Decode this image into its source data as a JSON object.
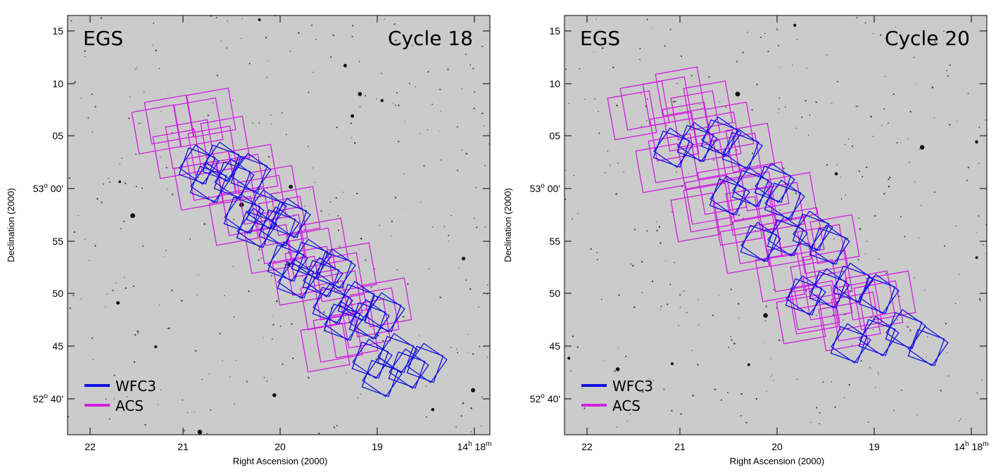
{
  "panels": [
    {
      "field": "EGS",
      "cycle": "Cycle 18",
      "x_label": "Right Ascension (2000)",
      "y_label": "Declination (2000)",
      "x_ticks": [
        "22",
        "21",
        "20",
        "19"
      ],
      "x_tick_end": {
        "value": "14",
        "h": "h",
        "mid": " 18",
        "m": "m"
      },
      "y_ticks_minor": [
        "15",
        "10",
        "05",
        "55",
        "50",
        "45"
      ],
      "y_tick_53": {
        "deg": "53",
        "o": "o",
        "min": " 00'"
      },
      "y_tick_52": {
        "deg": "52",
        "o": "o",
        "min": " 40'"
      },
      "legend": [
        {
          "label": "WFC3",
          "color": "#1010e0"
        },
        {
          "label": "ACS",
          "color": "#d020e0"
        }
      ]
    },
    {
      "field": "EGS",
      "cycle": "Cycle 20",
      "x_label": "Right Ascension (2000)",
      "y_label": "Declination (2000)",
      "x_ticks": [
        "22",
        "21",
        "20",
        "19"
      ],
      "x_tick_end": {
        "value": "14",
        "h": "h",
        "mid": " 18",
        "m": "m"
      },
      "y_ticks_minor": [
        "15",
        "10",
        "05",
        "55",
        "50",
        "45"
      ],
      "y_tick_53": {
        "deg": "53",
        "o": "o",
        "min": " 00'"
      },
      "y_tick_52": {
        "deg": "52",
        "o": "o",
        "min": " 40'"
      },
      "legend": [
        {
          "label": "WFC3",
          "color": "#1010e0"
        },
        {
          "label": "ACS",
          "color": "#d020e0"
        }
      ]
    }
  ],
  "colors": {
    "wfc3": "#1010e0",
    "acs": "#d020e0",
    "sky": "#cbcbcb"
  }
}
